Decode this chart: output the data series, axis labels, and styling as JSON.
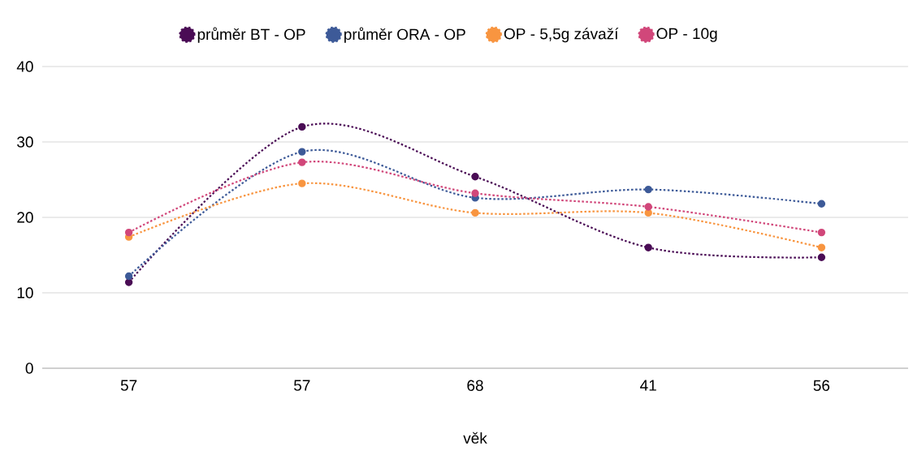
{
  "chart_data": {
    "type": "line",
    "xlabel": "věk",
    "categories": [
      "57",
      "57",
      "68",
      "41",
      "56"
    ],
    "series": [
      {
        "name": "průměr BT - OP",
        "color": "#4a0c55",
        "values": [
          11.4,
          32.0,
          25.4,
          16.0,
          14.7
        ]
      },
      {
        "name": "průměr ORA - OP",
        "color": "#3d5a98",
        "values": [
          12.2,
          28.7,
          22.6,
          23.7,
          21.8
        ]
      },
      {
        "name": "OP - 5,5g závaží",
        "color": "#f89540",
        "values": [
          17.4,
          24.5,
          20.6,
          20.6,
          16.0
        ]
      },
      {
        "name": "OP - 10g",
        "color": "#d1477a",
        "values": [
          18.0,
          27.3,
          23.2,
          21.4,
          18.0
        ]
      }
    ],
    "ylim": [
      0,
      40
    ],
    "yticks": [
      0,
      10,
      20,
      30,
      40
    ],
    "grid": "y",
    "legend": "top",
    "marker": "circle",
    "line_style": "dotted"
  }
}
